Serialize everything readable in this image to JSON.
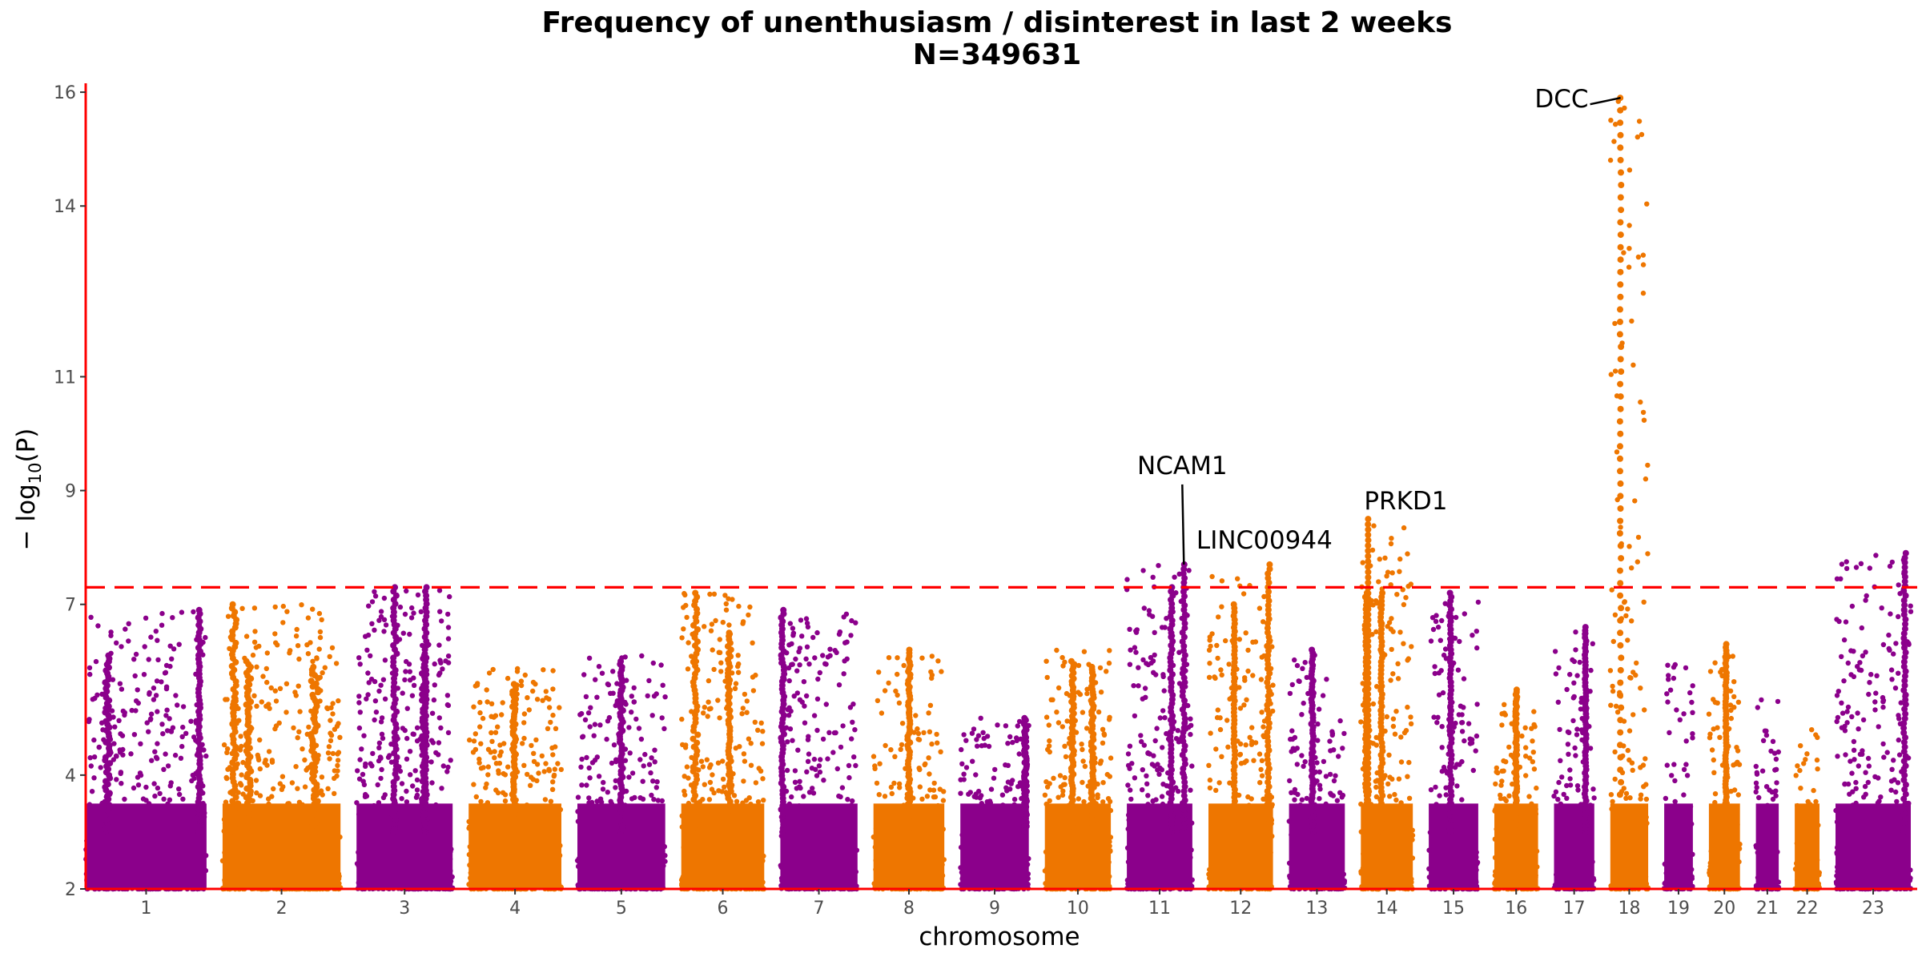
{
  "chart_data": {
    "type": "scatter",
    "title": "Frequency of unenthusiasm / disinterest in last 2 weeks",
    "subtitle": "N=349631",
    "xlabel": "chromosome",
    "ylabel": "− log10(P)",
    "ylabel_main": "− log",
    "ylabel_sub": "10",
    "ylabel_var": "(P)",
    "ylim": [
      2,
      16.1
    ],
    "yticks": [
      2,
      4,
      7,
      9,
      11,
      14,
      16
    ],
    "significance_threshold": 7.3,
    "grid": false,
    "colors": {
      "odd": "#8b008b",
      "even": "#ee7600",
      "threshold": "#ff0000",
      "axis": "#ff0000"
    },
    "chromosomes": [
      {
        "label": "1",
        "len": 249,
        "max": 6.9
      },
      {
        "label": "2",
        "len": 243,
        "max": 7.0
      },
      {
        "label": "3",
        "len": 198,
        "max": 7.3
      },
      {
        "label": "4",
        "len": 191,
        "max": 5.9
      },
      {
        "label": "5",
        "len": 181,
        "max": 6.1
      },
      {
        "label": "6",
        "len": 171,
        "max": 7.2
      },
      {
        "label": "7",
        "len": 159,
        "max": 6.9
      },
      {
        "label": "8",
        "len": 146,
        "max": 6.2
      },
      {
        "label": "9",
        "len": 141,
        "max": 5.0
      },
      {
        "label": "10",
        "len": 136,
        "max": 6.2
      },
      {
        "label": "11",
        "len": 135,
        "max": 7.7
      },
      {
        "label": "12",
        "len": 133,
        "max": 7.7
      },
      {
        "label": "13",
        "len": 115,
        "max": 6.2
      },
      {
        "label": "14",
        "len": 107,
        "max": 8.5
      },
      {
        "label": "15",
        "len": 102,
        "max": 7.2
      },
      {
        "label": "16",
        "len": 90,
        "max": 5.5
      },
      {
        "label": "17",
        "len": 83,
        "max": 6.6
      },
      {
        "label": "18",
        "len": 78,
        "max": 15.9
      },
      {
        "label": "19",
        "len": 59,
        "max": 6.0
      },
      {
        "label": "20",
        "len": 64,
        "max": 6.3
      },
      {
        "label": "21",
        "len": 47,
        "max": 5.4
      },
      {
        "label": "22",
        "len": 51,
        "max": 4.8
      },
      {
        "label": "23",
        "len": 155,
        "max": 7.9
      }
    ],
    "peaks": [
      {
        "chr": "1",
        "pos": 0.18,
        "y": 6.1,
        "width": 0.02
      },
      {
        "chr": "1",
        "pos": 0.94,
        "y": 6.9,
        "width": 0.01
      },
      {
        "chr": "2",
        "pos": 0.1,
        "y": 7.0,
        "width": 0.02
      },
      {
        "chr": "2",
        "pos": 0.22,
        "y": 6.0,
        "width": 0.02
      },
      {
        "chr": "2",
        "pos": 0.78,
        "y": 5.9,
        "width": 0.03
      },
      {
        "chr": "3",
        "pos": 0.4,
        "y": 7.3,
        "width": 0.02
      },
      {
        "chr": "3",
        "pos": 0.72,
        "y": 7.3,
        "width": 0.01
      },
      {
        "chr": "3",
        "pos": 0.7,
        "y": 6.1,
        "width": 0.02
      },
      {
        "chr": "4",
        "pos": 0.49,
        "y": 5.6,
        "width": 0.02
      },
      {
        "chr": "5",
        "pos": 0.5,
        "y": 6.0,
        "width": 0.02
      },
      {
        "chr": "6",
        "pos": 0.17,
        "y": 7.2,
        "width": 0.03
      },
      {
        "chr": "6",
        "pos": 0.58,
        "y": 6.5,
        "width": 0.02
      },
      {
        "chr": "7",
        "pos": 0.03,
        "y": 6.9,
        "width": 0.02
      },
      {
        "chr": "8",
        "pos": 0.5,
        "y": 6.2,
        "width": 0.02
      },
      {
        "chr": "9",
        "pos": 0.95,
        "y": 5.0,
        "width": 0.02
      },
      {
        "chr": "10",
        "pos": 0.42,
        "y": 6.0,
        "width": 0.02
      },
      {
        "chr": "10",
        "pos": 0.72,
        "y": 5.9,
        "width": 0.02
      },
      {
        "chr": "11",
        "pos": 0.68,
        "y": 7.3,
        "width": 0.02
      },
      {
        "chr": "11",
        "pos": 0.87,
        "y": 7.7,
        "width": 0.02
      },
      {
        "chr": "12",
        "pos": 0.93,
        "y": 7.7,
        "width": 0.02
      },
      {
        "chr": "12",
        "pos": 0.4,
        "y": 7.0,
        "width": 0.01
      },
      {
        "chr": "13",
        "pos": 0.42,
        "y": 6.2,
        "width": 0.02
      },
      {
        "chr": "14",
        "pos": 0.1,
        "y": 7.2,
        "width": 0.02
      },
      {
        "chr": "14",
        "pos": 0.4,
        "y": 7.2,
        "width": 0.02
      },
      {
        "chr": "14",
        "pos": 0.14,
        "y": 8.5,
        "width": 0.002
      },
      {
        "chr": "15",
        "pos": 0.44,
        "y": 7.2,
        "width": 0.02
      },
      {
        "chr": "16",
        "pos": 0.5,
        "y": 5.5,
        "width": 0.02
      },
      {
        "chr": "17",
        "pos": 0.78,
        "y": 6.6,
        "width": 0.02
      },
      {
        "chr": "18",
        "pos": 0.27,
        "y": 15.9,
        "width": 0.015
      },
      {
        "chr": "20",
        "pos": 0.55,
        "y": 6.3,
        "width": 0.02
      },
      {
        "chr": "23",
        "pos": 0.92,
        "y": 7.9,
        "width": 0.015
      }
    ],
    "annotations": [
      {
        "label": "DCC",
        "chr": "18",
        "pos": 0.27,
        "y": 15.9
      },
      {
        "label": "NCAM1",
        "chr": "11",
        "pos": 0.87,
        "y": 7.7
      },
      {
        "label": "LINC00944",
        "chr": "12",
        "pos": 0.93,
        "y": 7.7
      },
      {
        "label": "PRKD1",
        "chr": "14",
        "pos": 0.14,
        "y": 8.5
      }
    ]
  }
}
